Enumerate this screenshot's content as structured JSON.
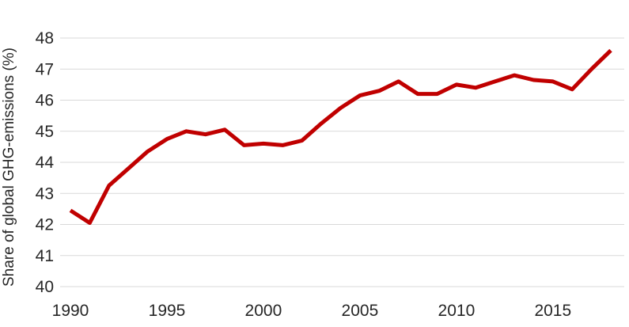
{
  "chart_data": {
    "type": "line",
    "title": "",
    "xlabel": "",
    "ylabel": "Share of global GHG-emissions (%)",
    "x": [
      1990,
      1991,
      1992,
      1993,
      1994,
      1995,
      1996,
      1997,
      1998,
      1999,
      2000,
      2001,
      2002,
      2003,
      2004,
      2005,
      2006,
      2007,
      2008,
      2009,
      2010,
      2011,
      2012,
      2013,
      2014,
      2015,
      2016,
      2017,
      2018
    ],
    "series": [
      {
        "name": "Share of global GHG-emissions (%)",
        "color": "#c00000",
        "values": [
          42.45,
          42.05,
          43.25,
          43.8,
          44.35,
          44.75,
          45.0,
          44.9,
          45.05,
          44.55,
          44.6,
          44.55,
          44.7,
          45.25,
          45.75,
          46.15,
          46.3,
          46.6,
          46.2,
          46.2,
          46.5,
          46.4,
          46.6,
          46.8,
          46.65,
          46.6,
          46.35,
          47.0,
          47.6
        ]
      }
    ],
    "xlim": [
      1990,
      2018
    ],
    "ylim": [
      40,
      48
    ],
    "yticks": [
      40,
      41,
      42,
      43,
      44,
      45,
      46,
      47,
      48
    ],
    "xticks": [
      1990,
      1995,
      2000,
      2005,
      2010,
      2015
    ],
    "grid": "horizontal",
    "legend_position": "none"
  },
  "colors": {
    "line": "#c00000",
    "grid": "#d9d9d9",
    "text": "#262626",
    "background": "#ffffff"
  }
}
